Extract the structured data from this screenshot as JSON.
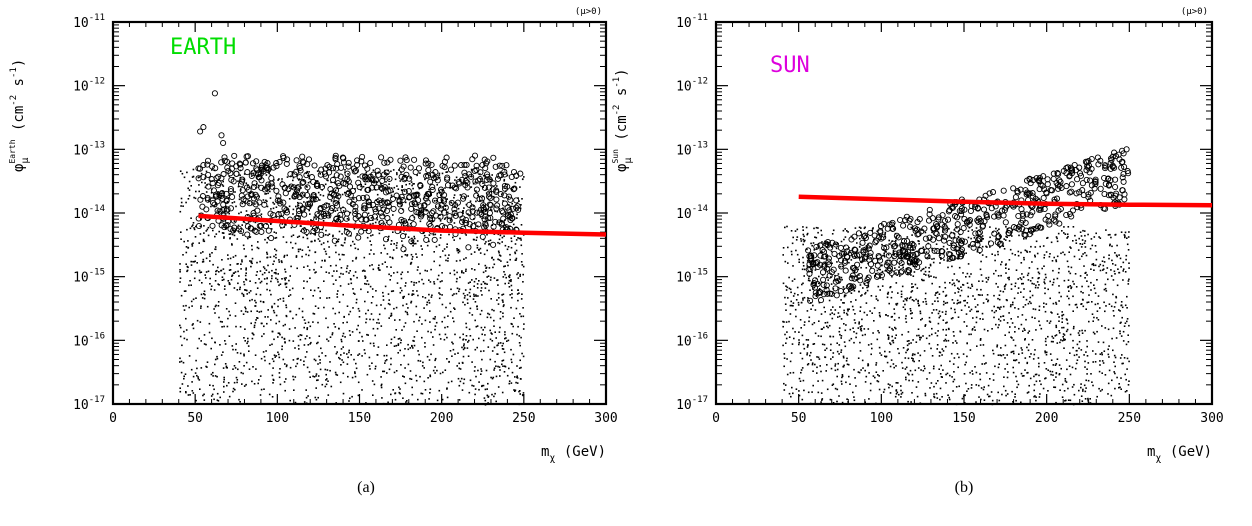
{
  "chart_data": [
    {
      "type": "scatter",
      "panel_label": "(a)",
      "title": "EARTH",
      "title_color": "#00dd00",
      "annotation": "(μ>0)",
      "xlabel": "m_χ (GeV)",
      "ylabel": "φ_μ^Earth (cm^-2 s^-1)",
      "ylabel_base": "φ",
      "ylabel_sub": "μ",
      "ylabel_sup": "Earth",
      "ylabel_units": "(cm",
      "ylabel_units2": "s",
      "xlabel_main": "m",
      "xlabel_sub": "χ",
      "xlabel_units": "(GeV)",
      "xlim": [
        0,
        300
      ],
      "ylim": [
        1e-17,
        1e-11
      ],
      "yscale": "log",
      "x_ticks": [
        "0",
        "50",
        "100",
        "150",
        "200",
        "250",
        "300"
      ],
      "y_tick_exponents": [
        "-17",
        "-16",
        "-15",
        "-14",
        "-13",
        "-12",
        "-11"
      ],
      "y_tick_base": "10",
      "grid": false,
      "series": [
        {
          "marker": "dot",
          "x_range": [
            40,
            250
          ],
          "log10_y_range": [
            -17,
            -13.3
          ],
          "count": 2400
        },
        {
          "marker": "open-circle",
          "x_range": [
            52,
            248
          ],
          "log10_y_range": [
            -14.6,
            -13.0
          ],
          "count": 700,
          "outliers": [
            [
              62,
              -12.12
            ],
            [
              53,
              -12.72
            ],
            [
              55,
              -12.65
            ],
            [
              66,
              -12.78
            ],
            [
              67,
              -12.9
            ],
            [
              52,
              -13.3
            ]
          ]
        },
        {
          "marker": "line",
          "color": "#ff0000",
          "x": [
            52,
            100,
            150,
            200,
            250,
            300
          ],
          "y": [
            9e-15,
            7.5e-15,
            6.2e-15,
            5.3e-15,
            4.9e-15,
            4.6e-15
          ]
        }
      ]
    },
    {
      "type": "scatter",
      "panel_label": "(b)",
      "title": "SUN",
      "title_color": "#dd00dd",
      "annotation": "(μ>0)",
      "xlabel": "m_χ (GeV)",
      "ylabel": "φ_μ^Sun (cm^-2 s^-1)",
      "ylabel_base": "φ",
      "ylabel_sub": "μ",
      "ylabel_sup": "Sun",
      "ylabel_units": "(cm",
      "ylabel_units2": "s",
      "xlabel_main": "m",
      "xlabel_sub": "χ",
      "xlabel_units": "(GeV)",
      "xlim": [
        0,
        300
      ],
      "ylim": [
        1e-17,
        1e-11
      ],
      "yscale": "log",
      "x_ticks": [
        "0",
        "50",
        "100",
        "150",
        "200",
        "250",
        "300"
      ],
      "y_tick_exponents": [
        "-17",
        "-16",
        "-15",
        "-14",
        "-13",
        "-12",
        "-11"
      ],
      "y_tick_base": "10",
      "grid": false,
      "series": [
        {
          "marker": "dot",
          "x_range": [
            40,
            250
          ],
          "log10_y_range": [
            -17,
            -14.2
          ],
          "count": 2000
        },
        {
          "marker": "open-circle",
          "x_range": [
            55,
            250
          ],
          "log10_y_range": [
            -15.3,
            -13.0
          ],
          "count": 600
        },
        {
          "marker": "line",
          "color": "#ff0000",
          "x": [
            50,
            100,
            150,
            200,
            250,
            300
          ],
          "y": [
            1.8e-14,
            1.65e-14,
            1.5e-14,
            1.4e-14,
            1.35e-14,
            1.32e-14
          ]
        }
      ]
    }
  ]
}
